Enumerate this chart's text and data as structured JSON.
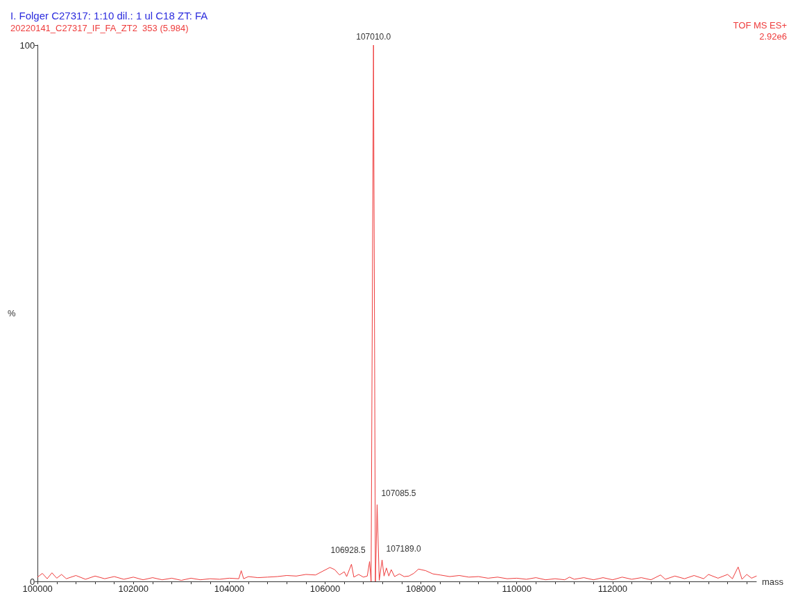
{
  "chart_data": {
    "type": "line",
    "title": "I. Folger C27317: 1:10 dil.: 1 ul C18 ZT: FA",
    "subtitle": "20220141_C27317_IF_FA_ZT2  353 (5.984)",
    "xlabel": "mass",
    "ylabel": "%",
    "annotations": [
      "TOF MS ES+",
      "2.92e6",
      {
        "text": "107010.0",
        "x": 107010,
        "y": 100
      },
      {
        "text": "107085.5",
        "x": 107085.5,
        "y": 14.3
      },
      {
        "text": "106928.5",
        "x": 106928.5,
        "y": 3.7
      },
      {
        "text": "107189.0",
        "x": 107189,
        "y": 4.0
      }
    ],
    "x": [
      100000,
      100100,
      100200,
      100300,
      100400,
      100500,
      100600,
      100800,
      101000,
      101200,
      101400,
      101600,
      101800,
      102000,
      102200,
      102400,
      102600,
      102800,
      103000,
      103200,
      103400,
      103600,
      103800,
      104000,
      104200,
      104250,
      104300,
      104400,
      104600,
      104800,
      105000,
      105200,
      105400,
      105600,
      105800,
      105950,
      106100,
      106200,
      106300,
      106400,
      106450,
      106550,
      106600,
      106700,
      106800,
      106880,
      106928.5,
      106960,
      107010,
      107050,
      107085.5,
      107130,
      107189,
      107230,
      107280,
      107330,
      107380,
      107450,
      107550,
      107650,
      107750,
      107850,
      107950,
      108100,
      108250,
      108400,
      108600,
      108800,
      109000,
      109200,
      109400,
      109600,
      109800,
      110000,
      110200,
      110400,
      110600,
      110800,
      111000,
      111100,
      111200,
      111400,
      111600,
      111800,
      112000,
      112200,
      112400,
      112600,
      112800,
      113000,
      113100,
      113300,
      113500,
      113700,
      113900,
      114000,
      114200,
      114400,
      114500,
      114620,
      114700,
      114800,
      114900,
      115000
    ],
    "series": [
      {
        "color": "#ee3b3b",
        "values": [
          0.8,
          1.5,
          0.5,
          1.6,
          0.6,
          1.3,
          0.5,
          1.1,
          0.4,
          1.0,
          0.5,
          0.9,
          0.4,
          0.8,
          0.3,
          0.7,
          0.3,
          0.6,
          0.2,
          0.6,
          0.3,
          0.5,
          0.4,
          0.6,
          0.5,
          2.0,
          0.5,
          0.9,
          0.7,
          0.8,
          0.9,
          1.1,
          1.0,
          1.3,
          1.2,
          1.9,
          2.6,
          2.2,
          1.2,
          1.8,
          0.9,
          3.2,
          0.8,
          1.3,
          0.8,
          1.0,
          3.7,
          0,
          100,
          0,
          14.3,
          0.2,
          4.0,
          1.0,
          2.5,
          1.0,
          2.2,
          0.9,
          1.4,
          0.9,
          1.0,
          1.5,
          2.3,
          2.0,
          1.4,
          1.2,
          0.9,
          1.1,
          0.8,
          0.9,
          0.6,
          0.8,
          0.5,
          0.6,
          0.4,
          0.7,
          0.3,
          0.5,
          0.3,
          0.8,
          0.4,
          0.7,
          0.3,
          0.7,
          0.3,
          0.8,
          0.4,
          0.7,
          0.3,
          1.2,
          0.4,
          1.0,
          0.5,
          1.1,
          0.5,
          1.3,
          0.6,
          1.3,
          0.5,
          2.7,
          0.4,
          1.3,
          0.6,
          1.0
        ]
      }
    ],
    "xlim": [
      100000,
      115000
    ],
    "xticks": [
      100000,
      {
        "value": 100400,
        "label": null
      },
      {
        "value": 100800,
        "label": null
      },
      {
        "value": 101200,
        "label": null
      },
      {
        "value": 101600,
        "label": null
      },
      102000,
      {
        "value": 102400,
        "label": null
      },
      {
        "value": 102800,
        "label": null
      },
      {
        "value": 103200,
        "label": null
      },
      {
        "value": 103600,
        "label": null
      },
      104000,
      {
        "value": 104400,
        "label": null
      },
      {
        "value": 104800,
        "label": null
      },
      {
        "value": 105200,
        "label": null
      },
      {
        "value": 105600,
        "label": null
      },
      106000,
      {
        "value": 106400,
        "label": null
      },
      {
        "value": 106800,
        "label": null
      },
      {
        "value": 107200,
        "label": null
      },
      {
        "value": 107600,
        "label": null
      },
      108000,
      {
        "value": 108400,
        "label": null
      },
      {
        "value": 108800,
        "label": null
      },
      {
        "value": 109200,
        "label": null
      },
      {
        "value": 109600,
        "label": null
      },
      110000,
      {
        "value": 110400,
        "label": null
      },
      {
        "value": 110800,
        "label": null
      },
      {
        "value": 111200,
        "label": null
      },
      {
        "value": 111600,
        "label": null
      },
      112000,
      {
        "value": 112400,
        "label": null
      },
      {
        "value": 112800,
        "label": null
      },
      {
        "value": 113200,
        "label": null
      },
      {
        "value": 113600,
        "label": null
      },
      {
        "value": 114000,
        "label": null
      },
      {
        "value": 114400,
        "label": null
      },
      {
        "value": 114800,
        "label": null
      }
    ],
    "ylim": [
      0,
      100
    ],
    "yticks": [
      0,
      100
    ],
    "grid": false,
    "marker": "none",
    "line_style": "solid"
  }
}
